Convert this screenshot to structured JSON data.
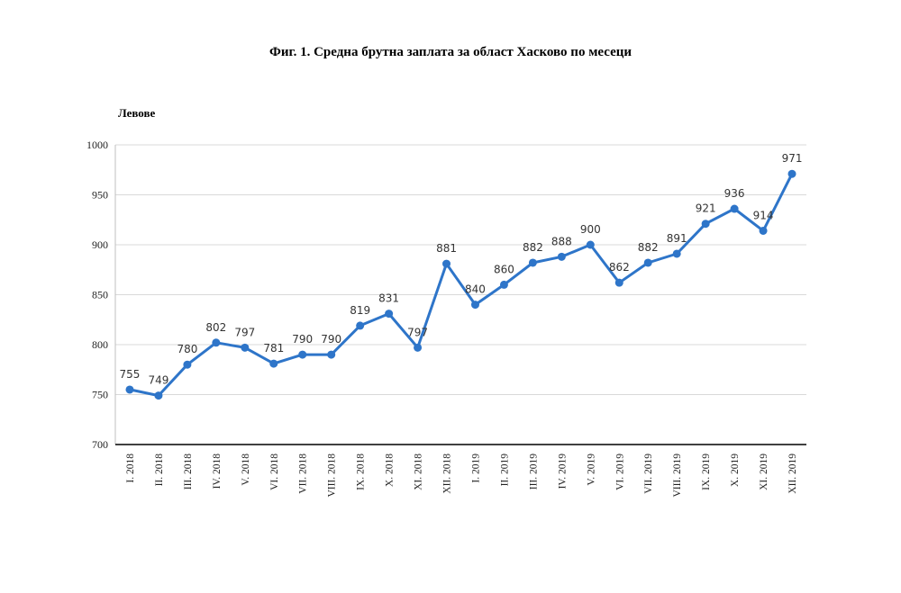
{
  "chart_data": {
    "type": "line",
    "title": "Фиг. 1. Средна брутна заплата за област Хасково по месеци",
    "ylabel": "Левове",
    "xlabel": "",
    "ylim": [
      700,
      1000
    ],
    "yticks": [
      700,
      750,
      800,
      850,
      900,
      950,
      1000
    ],
    "grid": true,
    "legend": "none",
    "series_color": "#2E75C9",
    "categories": [
      "I. 2018",
      "II. 2018",
      "III. 2018",
      "IV. 2018",
      "V. 2018",
      "VI. 2018",
      "VII. 2018",
      "VIII. 2018",
      "IX. 2018",
      "X. 2018",
      "XI. 2018",
      "XII. 2018",
      "I. 2019",
      "II. 2019",
      "III. 2019",
      "IV. 2019",
      "V. 2019",
      "VI. 2019",
      "VII. 2019",
      "VIII. 2019",
      "IX. 2019",
      "X. 2019",
      "XI. 2019",
      "XII. 2019"
    ],
    "values": [
      755,
      749,
      780,
      802,
      797,
      781,
      790,
      790,
      819,
      831,
      797,
      881,
      840,
      860,
      882,
      888,
      900,
      862,
      882,
      891,
      921,
      936,
      914,
      971
    ]
  }
}
